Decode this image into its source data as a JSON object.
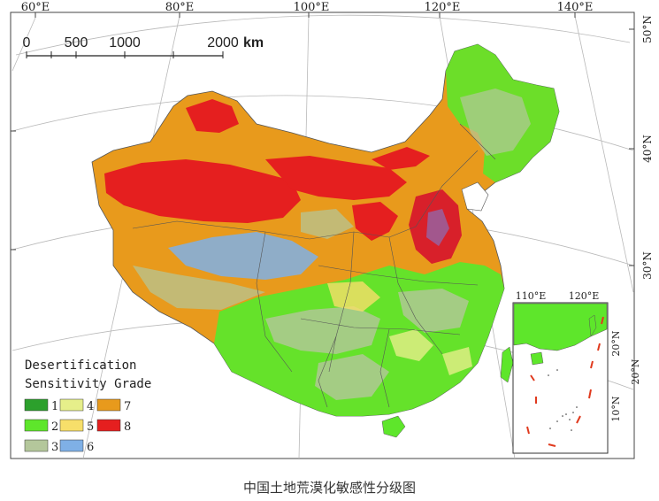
{
  "map": {
    "top_lon_labels": [
      "60°E",
      "80°E",
      "100°E",
      "120°E",
      "140°E"
    ],
    "right_lat_labels": [
      "50°N",
      "40°N",
      "30°N",
      "20°N"
    ],
    "scale_bar": {
      "ticks": [
        "0",
        "500",
        "1000",
        "2000"
      ],
      "unit": "km"
    },
    "legend": {
      "title_line1": "Desertification",
      "title_line2": "Sensitivity Grade",
      "items": [
        {
          "label": "1",
          "color": "#2ca02c"
        },
        {
          "label": "2",
          "color": "#5ee62b"
        },
        {
          "label": "3",
          "color": "#b4c79b"
        },
        {
          "label": "4",
          "color": "#e6ef8a"
        },
        {
          "label": "5",
          "color": "#f7df6a"
        },
        {
          "label": "6",
          "color": "#7fb0e6"
        },
        {
          "label": "7",
          "color": "#e89a1c"
        },
        {
          "label": "8",
          "color": "#e51f1f"
        }
      ]
    },
    "inset": {
      "lon_labels": [
        "110°E",
        "120°E"
      ],
      "lat_labels": [
        "20°N",
        "10°N"
      ]
    }
  },
  "caption": "中国土地荒漠化敏感性分级图"
}
